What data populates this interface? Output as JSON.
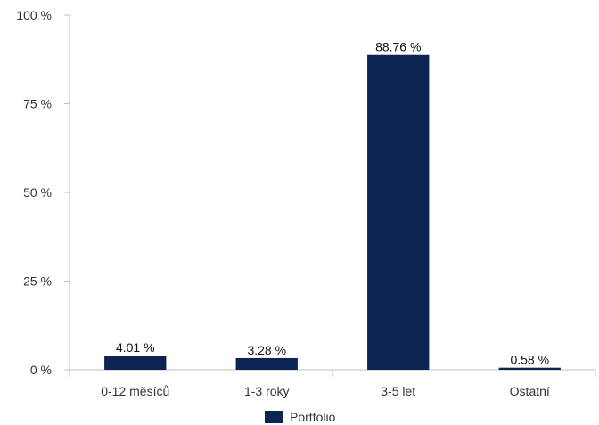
{
  "chart_data": {
    "type": "bar",
    "categories": [
      "0-12 měsíců",
      "1-3 roky",
      "3-5 let",
      "Ostatní"
    ],
    "series": [
      {
        "name": "Portfolio",
        "values": [
          4.01,
          3.28,
          88.76,
          0.58
        ]
      }
    ],
    "data_labels": [
      "4.01 %",
      "3.28 %",
      "88.76 %",
      "0.58 %"
    ],
    "ylim": [
      0,
      100
    ],
    "yticks": [
      0,
      25,
      50,
      75,
      100
    ],
    "ytick_labels": [
      "0 %",
      "25 %",
      "50 %",
      "75 %",
      "100 %"
    ],
    "grid": false,
    "legend_position": "bottom",
    "colors": {
      "bar": "#0d2452",
      "axis": "#bfbfbf"
    }
  }
}
